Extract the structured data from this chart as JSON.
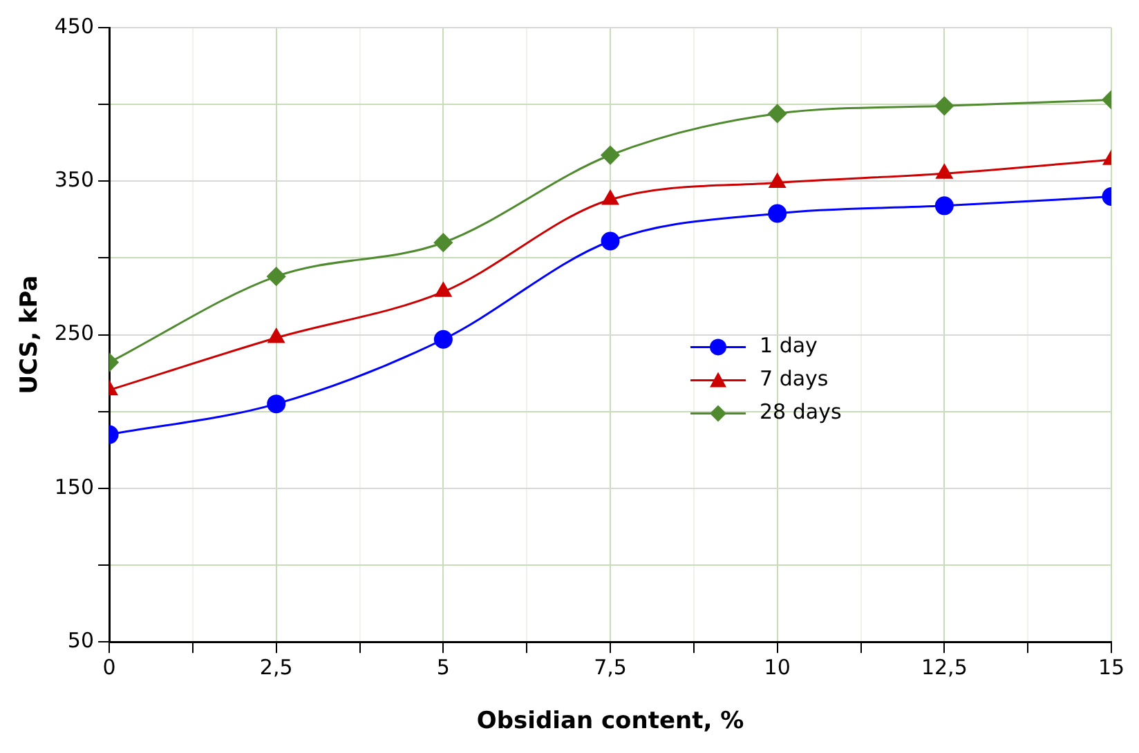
{
  "chart_data": {
    "type": "line",
    "xlabel": "Obsidian content, %",
    "ylabel": "UCS, kPa",
    "x": [
      0,
      2.5,
      5,
      7.5,
      10,
      12.5,
      15
    ],
    "series": [
      {
        "name": "1 day",
        "color": "#0000ff",
        "marker": "circle",
        "values": [
          185,
          205,
          247,
          311,
          329,
          334,
          340
        ]
      },
      {
        "name": "7 days",
        "color": "#cc0000",
        "marker": "triangle",
        "values": [
          214,
          248,
          278,
          338,
          349,
          355,
          364
        ]
      },
      {
        "name": "28 days",
        "color": "#4f8a2f",
        "marker": "diamond",
        "values": [
          232,
          288,
          310,
          367,
          394,
          399,
          403
        ]
      }
    ],
    "xlim": [
      0,
      15
    ],
    "xticks": [
      0,
      {
        "value": 1.25,
        "label": null
      },
      {
        "value": 2.5,
        "label": "2,5"
      },
      {
        "value": 3.75,
        "label": null
      },
      5,
      {
        "value": 6.25,
        "label": null
      },
      {
        "value": 7.5,
        "label": "7,5"
      },
      {
        "value": 8.75,
        "label": null
      },
      10,
      {
        "value": 11.25,
        "label": null
      },
      {
        "value": 12.5,
        "label": "12,5"
      },
      {
        "value": 13.75,
        "label": null
      },
      15
    ],
    "ylim": [
      50,
      450
    ],
    "yticks": [
      50,
      {
        "value": 100,
        "label": null
      },
      150,
      {
        "value": 200,
        "label": null
      },
      250,
      {
        "value": 300,
        "label": null
      },
      350,
      {
        "value": 400,
        "label": null
      },
      450
    ],
    "grid": true,
    "legend": "right"
  }
}
